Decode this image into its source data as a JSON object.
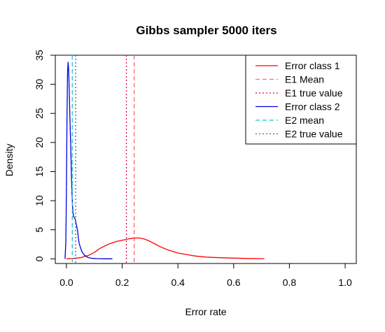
{
  "chart_data": {
    "type": "line",
    "title": "Gibbs sampler 5000 iters",
    "xlabel": "Error rate",
    "ylabel": "Density",
    "xlim": [
      -0.04,
      1.04
    ],
    "ylim": [
      -0.8,
      35.0
    ],
    "xticks": [
      0.0,
      0.2,
      0.4,
      0.6,
      0.8,
      1.0
    ],
    "xtick_labels": [
      "0.0",
      "0.2",
      "0.4",
      "0.6",
      "0.8",
      "1.0"
    ],
    "yticks": [
      0,
      5,
      10,
      15,
      20,
      25,
      30,
      35
    ],
    "ytick_labels": [
      "0",
      "5",
      "10",
      "15",
      "20",
      "25",
      "30",
      "35"
    ],
    "grid": false,
    "legend_position": "top-right",
    "series": [
      {
        "name": "Error class 1",
        "kind": "line",
        "color": "#ff0000",
        "x": [
          0.0,
          0.02,
          0.05,
          0.08,
          0.1,
          0.12,
          0.15,
          0.18,
          0.2,
          0.22,
          0.24,
          0.26,
          0.28,
          0.3,
          0.32,
          0.34,
          0.36,
          0.38,
          0.4,
          0.43,
          0.46,
          0.5,
          0.55,
          0.6,
          0.65,
          0.71
        ],
        "y": [
          0.0,
          0.05,
          0.2,
          0.6,
          1.1,
          1.8,
          2.5,
          3.0,
          3.2,
          3.4,
          3.55,
          3.6,
          3.4,
          3.0,
          2.5,
          2.0,
          1.6,
          1.3,
          1.0,
          0.75,
          0.5,
          0.3,
          0.2,
          0.12,
          0.06,
          0.03
        ]
      },
      {
        "name": "E1 Mean",
        "kind": "vline",
        "color": "#ff6b6b",
        "dash": "dashed",
        "x": 0.243
      },
      {
        "name": "E1 true value",
        "kind": "vline",
        "color": "#e0004a",
        "dash": "dotted",
        "x": 0.215
      },
      {
        "name": "Error class 2",
        "kind": "line",
        "color": "#0000dd",
        "x": [
          -0.005,
          -0.002,
          0.0,
          0.002,
          0.004,
          0.006,
          0.008,
          0.01,
          0.012,
          0.015,
          0.018,
          0.02,
          0.023,
          0.026,
          0.03,
          0.033,
          0.036,
          0.04,
          0.043,
          0.046,
          0.05,
          0.055,
          0.06,
          0.065,
          0.07,
          0.075,
          0.08,
          0.09,
          0.1,
          0.11,
          0.12,
          0.135,
          0.15,
          0.165
        ],
        "y": [
          0.0,
          3.0,
          12.0,
          24.0,
          32.0,
          33.8,
          32.5,
          29.0,
          25.0,
          20.0,
          14.0,
          11.0,
          8.0,
          7.2,
          7.0,
          6.4,
          5.8,
          4.8,
          3.5,
          2.6,
          2.0,
          1.3,
          0.9,
          0.6,
          0.45,
          0.3,
          0.2,
          0.1,
          0.06,
          0.04,
          0.03,
          0.02,
          0.01,
          0.01
        ]
      },
      {
        "name": "E2 mean",
        "kind": "vline",
        "color": "#22c0d8",
        "dash": "dashed",
        "x": 0.021
      },
      {
        "name": "E2 true value",
        "kind": "vline",
        "color": "#3a6a8a",
        "dash": "dotted",
        "x": 0.033
      }
    ]
  }
}
